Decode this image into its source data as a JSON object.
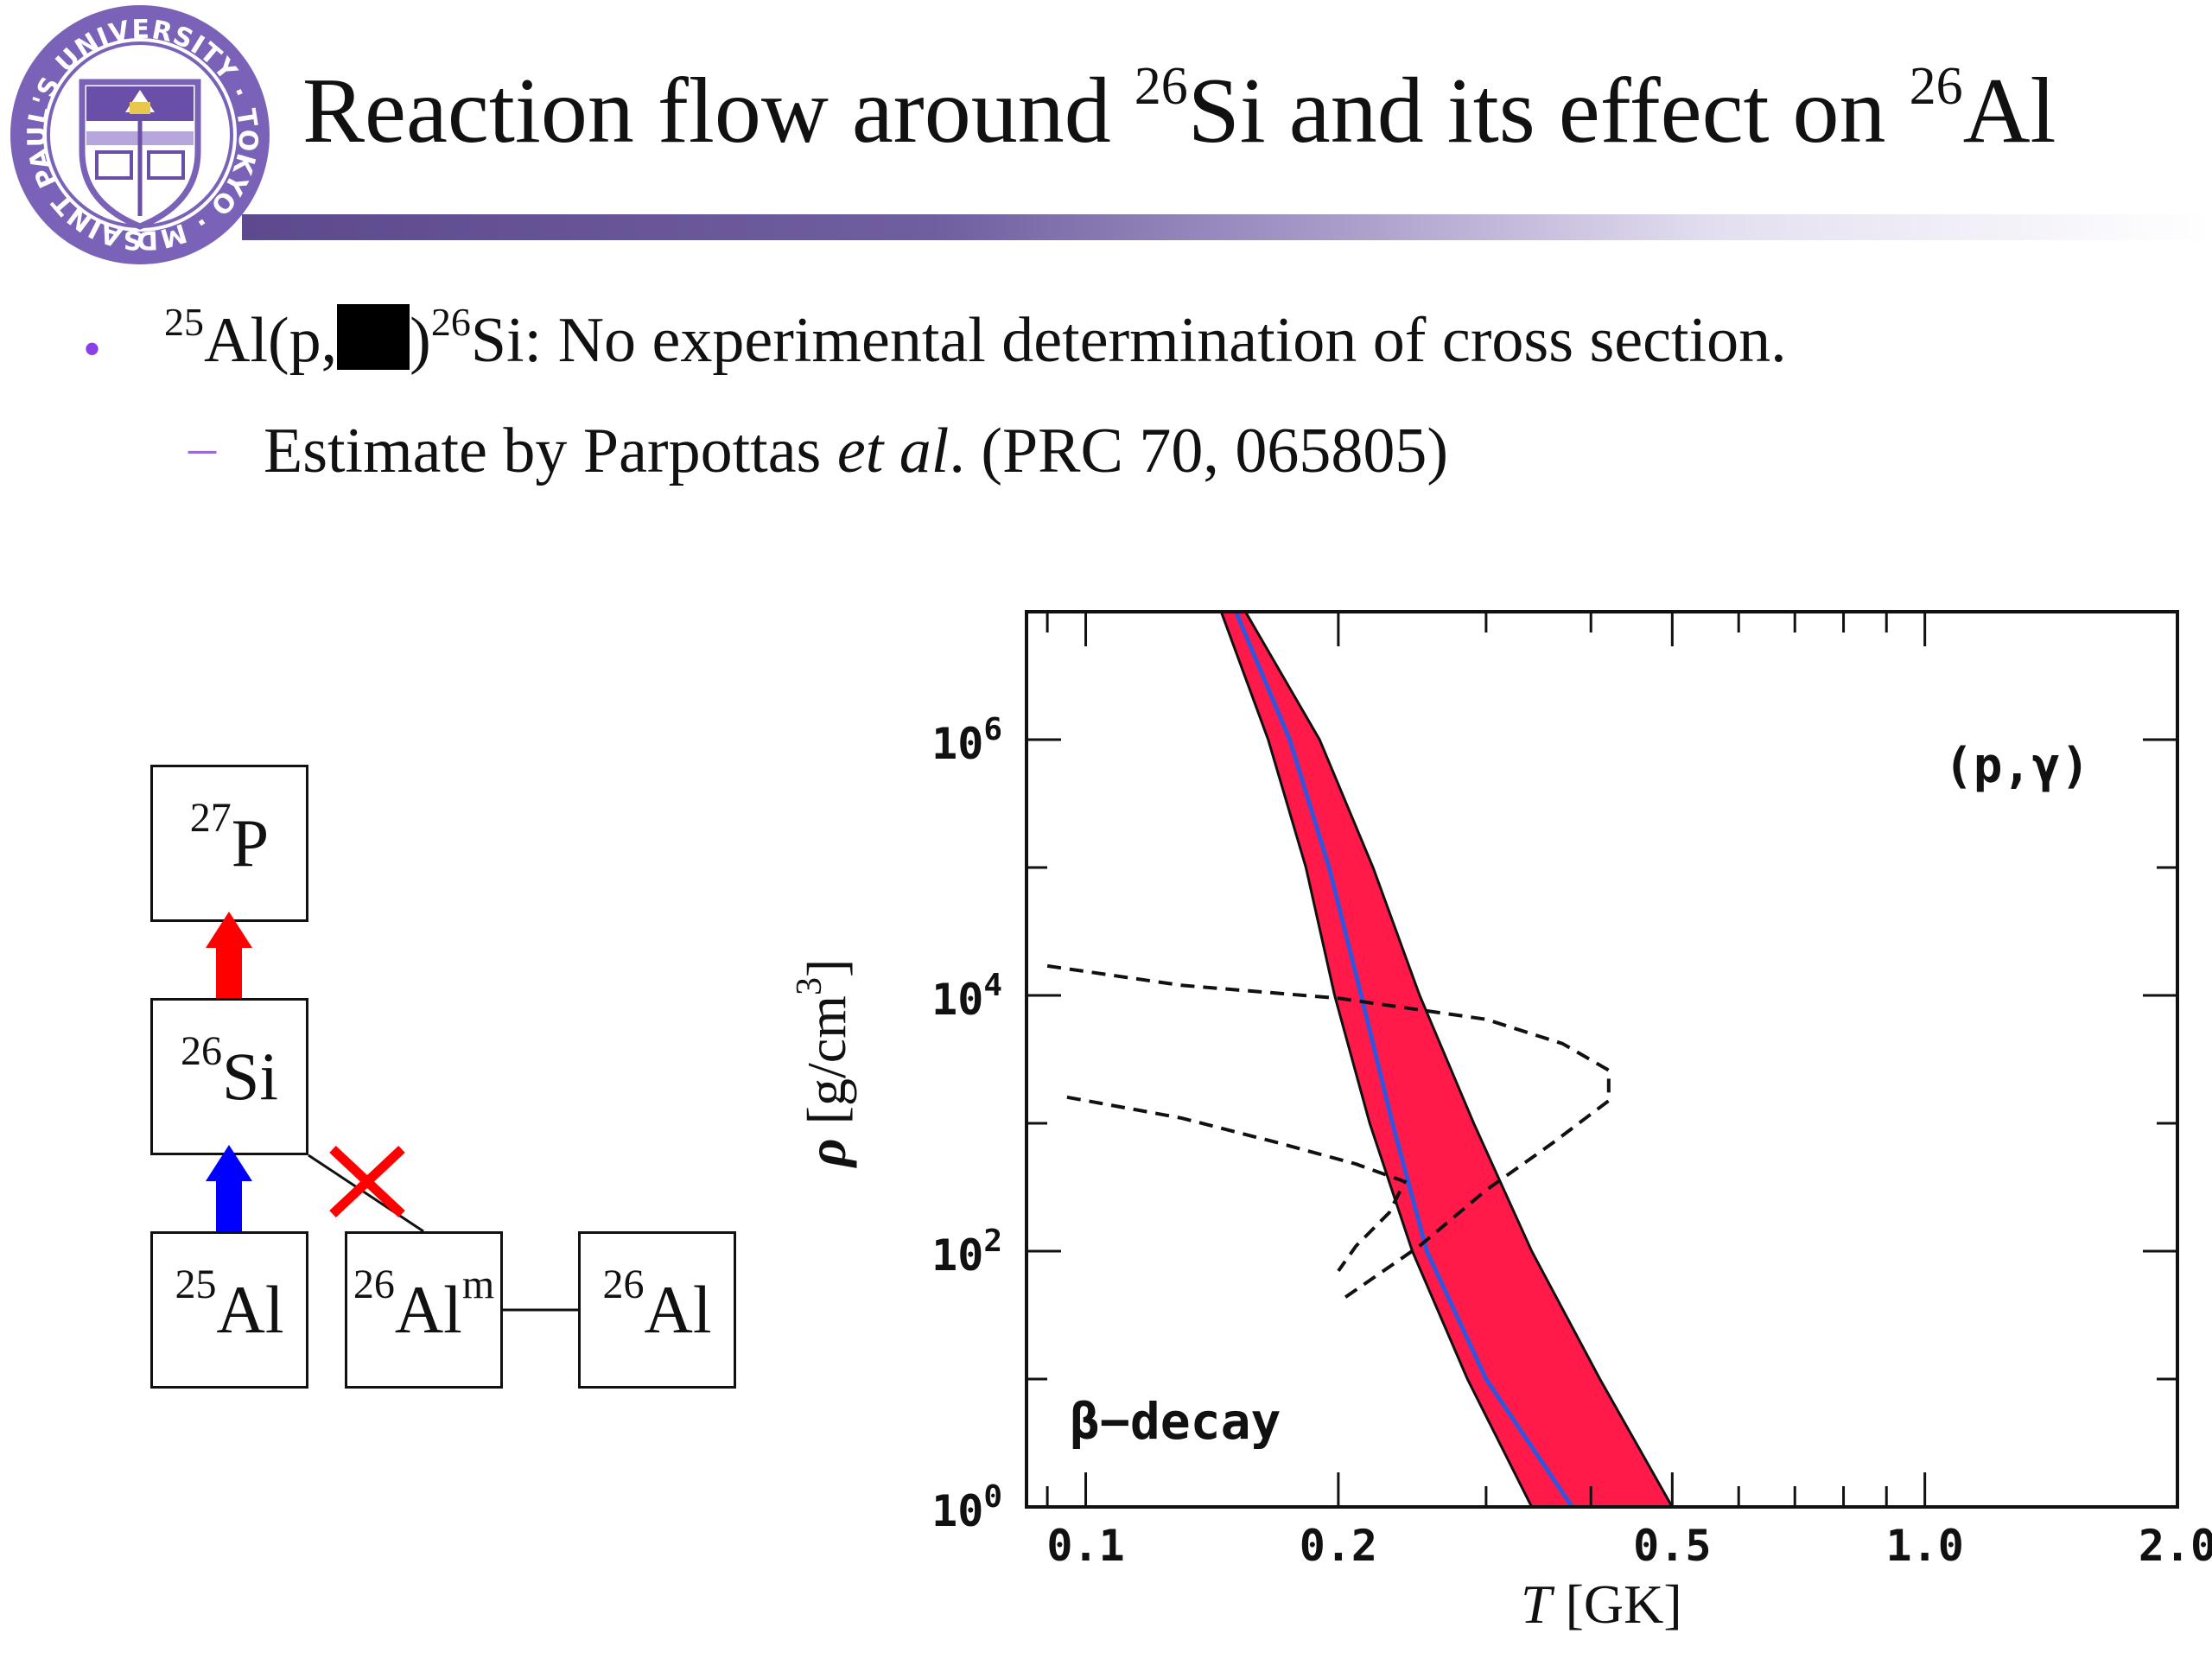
{
  "slide": {
    "title_parts": [
      "Reaction flow around ",
      "26",
      "Si and its effect on ",
      "26",
      "Al"
    ],
    "logo": {
      "ring_text": "SAINT PAUL'S UNIVERSITY · TOKYO · MDCCCLXXIV",
      "colors": {
        "primary": "#6a4fa8",
        "light": "#b6a6dc"
      }
    },
    "title_bar_color": "#5d4a8e"
  },
  "bullets": [
    {
      "marker": "•",
      "parts": [
        "25",
        "Al(p,",
        ")",
        "26",
        "Si: No experimental determination of cross section."
      ],
      "redacted": true
    },
    {
      "marker": "–",
      "parts": [
        "Estimate by Parpottas ",
        "et al",
        ". (PRC 70, 065805)"
      ]
    }
  ],
  "diagram": {
    "nuclei": [
      {
        "mass": "27",
        "symbol": "P"
      },
      {
        "mass": "26",
        "symbol": "Si"
      },
      {
        "mass": "25",
        "symbol": "Al"
      },
      {
        "mass": "26",
        "symbol": "Al",
        "suffix": "m"
      },
      {
        "mass": "26",
        "symbol": "Al"
      }
    ],
    "arrow_colors": {
      "p_gamma_to_27P": "#ff0000",
      "p_gamma_to_26Si": "#0000ff",
      "blocked_mark": "#ff0000"
    },
    "blocked_mark_icon": "cross-icon"
  },
  "chart_data": {
    "type": "line",
    "title": "",
    "xlabel": "T  [GK]",
    "xlabel_italic": "T",
    "xlabel_rest": "  [GK]",
    "ylabel": "ρ  [g/cm3]",
    "ylabel_symbol": "ρ",
    "ylabel_unit": "[g/cm",
    "ylabel_exp": "3",
    "ylabel_close": "]",
    "xscale": "log",
    "yscale": "log",
    "xlim": [
      0.085,
      2.0
    ],
    "ylim": [
      1,
      10000000
    ],
    "x_tick_labels": [
      "0.1",
      "0.2",
      "0.5",
      "1.0",
      "2.0"
    ],
    "x_tick_values": [
      0.1,
      0.2,
      0.5,
      1.0,
      2.0
    ],
    "y_tick_labels": [
      {
        "base": "10",
        "exp": "0",
        "value": 1
      },
      {
        "base": "10",
        "exp": "2",
        "value": 100
      },
      {
        "base": "10",
        "exp": "4",
        "value": 10000
      },
      {
        "base": "10",
        "exp": "6",
        "value": 1000000
      }
    ],
    "region_labels": {
      "upper_right": "(p,γ)",
      "lower_left": "β−decay"
    },
    "band": {
      "color": "#ff1a4a",
      "left_edge": [
        [
          0.145,
          10000000
        ],
        [
          0.165,
          1000000
        ],
        [
          0.183,
          100000
        ],
        [
          0.198,
          10000
        ],
        [
          0.218,
          1000
        ],
        [
          0.245,
          100
        ],
        [
          0.285,
          10
        ],
        [
          0.34,
          1
        ]
      ],
      "right_edge": [
        [
          0.155,
          10000000
        ],
        [
          0.19,
          1000000
        ],
        [
          0.22,
          100000
        ],
        [
          0.25,
          10000
        ],
        [
          0.29,
          1000
        ],
        [
          0.34,
          100
        ],
        [
          0.41,
          10
        ],
        [
          0.5,
          1
        ]
      ]
    },
    "series": [
      {
        "style": "solid",
        "color": "#3355dd",
        "points": [
          [
            0.151,
            10000000
          ],
          [
            0.175,
            1000000
          ],
          [
            0.195,
            100000
          ],
          [
            0.213,
            10000
          ],
          [
            0.232,
            1000
          ],
          [
            0.255,
            100
          ],
          [
            0.3,
            10
          ],
          [
            0.38,
            1
          ]
        ]
      },
      {
        "style": "dashed",
        "color": "#111111",
        "points": [
          [
            0.09,
            17000
          ],
          [
            0.13,
            12000
          ],
          [
            0.2,
            9500
          ],
          [
            0.3,
            6500
          ],
          [
            0.37,
            4200
          ],
          [
            0.42,
            2600
          ],
          [
            0.42,
            1500
          ],
          [
            0.36,
            700
          ],
          [
            0.3,
            300
          ],
          [
            0.25,
            110
          ],
          [
            0.2,
            40
          ]
        ]
      },
      {
        "style": "dashed",
        "color": "#111111",
        "points": [
          [
            0.095,
            1600
          ],
          [
            0.13,
            1100
          ],
          [
            0.17,
            700
          ],
          [
            0.21,
            480
          ],
          [
            0.24,
            350
          ],
          [
            0.23,
            200
          ],
          [
            0.21,
            110
          ],
          [
            0.2,
            70
          ]
        ]
      }
    ]
  }
}
